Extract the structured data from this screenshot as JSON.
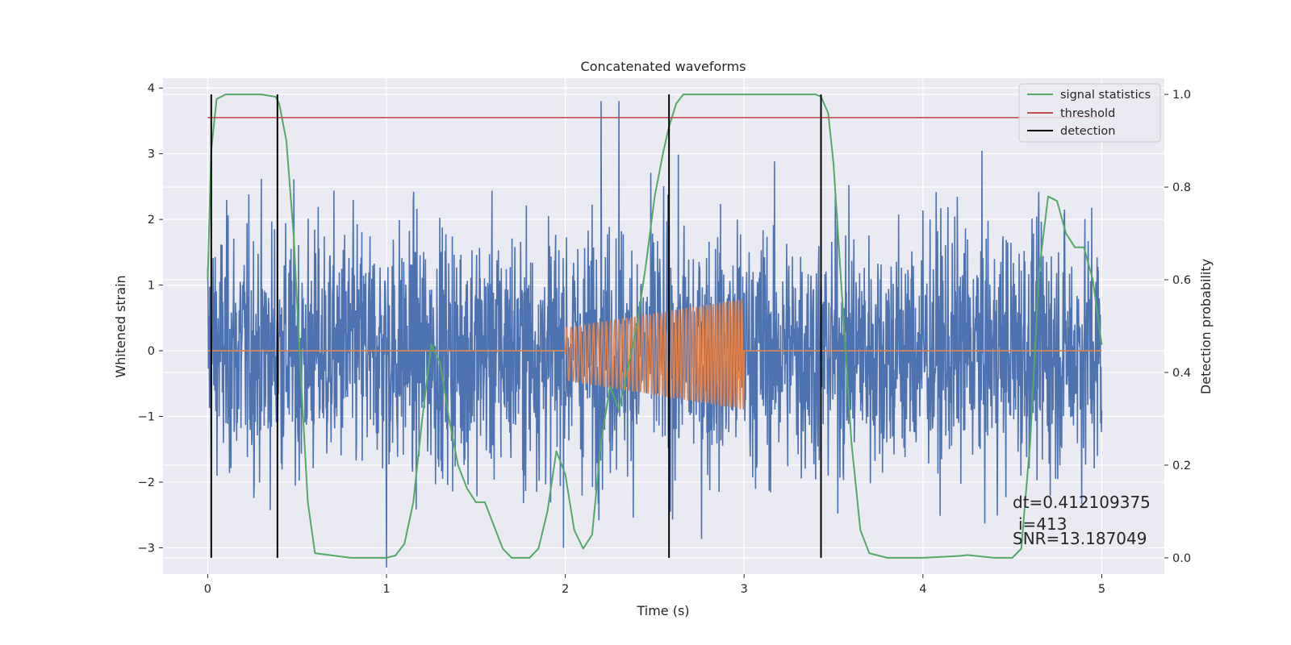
{
  "chart_data": {
    "type": "line",
    "title": "Concatenated waveforms",
    "xlabel": "Time (s)",
    "ylabel": "Whitened strain",
    "y2label": "Detection probability",
    "xlim": [
      -0.25,
      5.35
    ],
    "ylim": [
      -3.4,
      4.15
    ],
    "y2lim": [
      -0.035,
      1.035
    ],
    "x_ticks": [
      0,
      1,
      2,
      3,
      4,
      5
    ],
    "y_ticks": [
      -3,
      -2,
      -1,
      0,
      1,
      2,
      3,
      4
    ],
    "y2_ticks": [
      0.0,
      0.2,
      0.4,
      0.6,
      0.8,
      1.0
    ],
    "grid": true,
    "legend_position": "top-right",
    "colors": {
      "background": "#eaeaf2",
      "grid": "#ffffff",
      "strain": "#4c72b0",
      "template": "#dd8452",
      "signal_statistics": "#55a868",
      "threshold": "#c44e52",
      "detection": "#000000"
    },
    "series": [
      {
        "name": "signal statistics",
        "axis": "right",
        "x": [
          0.0,
          0.02,
          0.05,
          0.1,
          0.2,
          0.3,
          0.38,
          0.4,
          0.44,
          0.48,
          0.52,
          0.56,
          0.6,
          0.8,
          1.0,
          1.05,
          1.1,
          1.15,
          1.2,
          1.25,
          1.3,
          1.35,
          1.4,
          1.45,
          1.5,
          1.55,
          1.6,
          1.65,
          1.7,
          1.8,
          1.85,
          1.9,
          1.95,
          2.0,
          2.05,
          2.1,
          2.15,
          2.2,
          2.25,
          2.3,
          2.4,
          2.45,
          2.5,
          2.55,
          2.58,
          2.62,
          2.66,
          2.7,
          2.8,
          3.0,
          3.2,
          3.3,
          3.4,
          3.43,
          3.47,
          3.5,
          3.55,
          3.6,
          3.65,
          3.7,
          3.8,
          4.0,
          4.2,
          4.25,
          4.3,
          4.4,
          4.5,
          4.55,
          4.6,
          4.65,
          4.7,
          4.75,
          4.8,
          4.85,
          4.9,
          4.95,
          5.0
        ],
        "y": [
          0.6,
          0.88,
          0.99,
          1.0,
          1.0,
          1.0,
          0.995,
          0.98,
          0.9,
          0.7,
          0.4,
          0.12,
          0.01,
          0.0,
          0.0,
          0.005,
          0.03,
          0.12,
          0.3,
          0.46,
          0.42,
          0.3,
          0.2,
          0.15,
          0.12,
          0.12,
          0.07,
          0.02,
          0.0,
          0.0,
          0.02,
          0.1,
          0.23,
          0.18,
          0.06,
          0.02,
          0.05,
          0.25,
          0.37,
          0.32,
          0.5,
          0.63,
          0.78,
          0.88,
          0.93,
          0.98,
          1.0,
          1.0,
          1.0,
          1.0,
          1.0,
          1.0,
          1.0,
          0.995,
          0.96,
          0.85,
          0.55,
          0.25,
          0.06,
          0.01,
          0.0,
          0.0,
          0.004,
          0.006,
          0.004,
          0.0,
          0.0,
          0.02,
          0.25,
          0.62,
          0.78,
          0.77,
          0.7,
          0.67,
          0.67,
          0.6,
          0.46
        ]
      },
      {
        "name": "threshold",
        "axis": "right",
        "x": [
          0.0,
          5.0
        ],
        "y": [
          0.95,
          0.95
        ]
      },
      {
        "name": "detection",
        "axis": "right",
        "x": [
          0.02,
          0.39,
          2.58,
          3.43
        ],
        "y_range": [
          0.0,
          1.0
        ]
      },
      {
        "axis": "left",
        "x_range": [
          0.0,
          5.0
        ],
        "noise_std": 0.95,
        "max": 3.8,
        "min": -3.3
      },
      {
        "axis": "left",
        "x_range": [
          0.0,
          5.0
        ],
        "chirp_start": 2.0,
        "chirp_end": 3.0,
        "amplitude_start": 0.4,
        "amplitude_end": 0.85
      }
    ],
    "annotations": [
      "dt=0.412109375",
      "i=413",
      "SNR=13.187049"
    ]
  }
}
